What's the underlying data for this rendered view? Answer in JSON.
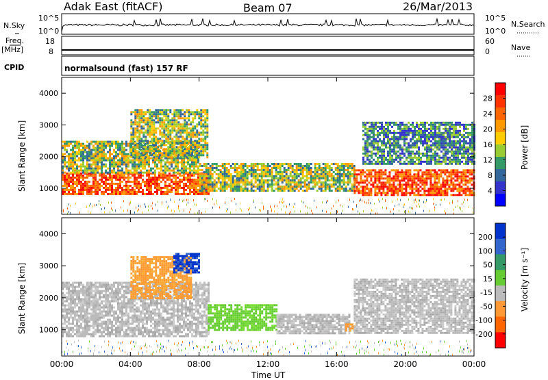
{
  "header": {
    "station": "Adak East (fitACF)",
    "beam": "Beam 07",
    "date": "26/Mar/2013"
  },
  "top_panels": {
    "nsky_label": "N.Sky",
    "nsky_ticks": [
      "10^5",
      "10^0"
    ],
    "nsearch_label": "N.Search",
    "nsearch_ticks": [
      "10^5",
      "10^0"
    ],
    "freq_label": "Freq.",
    "freq_unit": "[MHz]",
    "freq_ticks": [
      "18",
      "8"
    ],
    "nave_label": "Nave",
    "nave_ticks": [
      "60",
      "0"
    ],
    "cpid_label": "CPID",
    "cpid_text": "normalsound (fast) 157 RF"
  },
  "chart_data": [
    {
      "type": "heatmap",
      "panel": "power",
      "ylabel": "Slant Range [km]",
      "yticks": [
        "4000",
        "3000",
        "2000",
        "1000"
      ],
      "ylim": [
        180,
        4500
      ],
      "xlim_hours": [
        0,
        24
      ],
      "colorbar": {
        "label": "Power [dB]",
        "ticks": [
          "28",
          "24",
          "20",
          "16",
          "12",
          "8",
          "4"
        ],
        "colors": [
          "#ff0000",
          "#ff3300",
          "#ff6600",
          "#ff9900",
          "#ffcc00",
          "#99cc33",
          "#339966",
          "#336699",
          "#3333cc",
          "#0000ff"
        ]
      },
      "bands": [
        {
          "t0": 0.0,
          "t1": 8.5,
          "r0": 800,
          "r1": 1500,
          "level": "high"
        },
        {
          "t0": 0.0,
          "t1": 8.0,
          "r0": 1500,
          "r1": 2500,
          "level": "mid"
        },
        {
          "t0": 4.0,
          "t1": 8.5,
          "r0": 2000,
          "r1": 3500,
          "level": "mid"
        },
        {
          "t0": 8.0,
          "t1": 17.0,
          "r0": 900,
          "r1": 1800,
          "level": "mid"
        },
        {
          "t0": 17.0,
          "t1": 24.0,
          "r0": 800,
          "r1": 1600,
          "level": "high"
        },
        {
          "t0": 17.5,
          "t1": 24.0,
          "r0": 1800,
          "r1": 3100,
          "level": "low"
        }
      ]
    },
    {
      "type": "heatmap",
      "panel": "velocity",
      "ylabel": "Slant Range [km]",
      "yticks": [
        "4000",
        "3000",
        "2000",
        "1000"
      ],
      "ylim": [
        180,
        4500
      ],
      "xlim_hours": [
        0,
        24
      ],
      "xlabel": "Time UT",
      "xticks": [
        "00:00",
        "04:00",
        "08:00",
        "12:00",
        "16:00",
        "20:00",
        "00:00"
      ],
      "colorbar": {
        "label": "Velocity [m s⁻¹]",
        "ticks": [
          "200",
          "100",
          "50",
          "15",
          "-15",
          "-50",
          "-100",
          "-200"
        ],
        "colors": [
          "#0033cc",
          "#3366cc",
          "#339966",
          "#66cc33",
          "#bbbbbb",
          "#ff9933",
          "#ff6600",
          "#ff0000"
        ]
      },
      "bands": [
        {
          "t0": 0.0,
          "t1": 8.5,
          "r0": 800,
          "r1": 2500,
          "level": "ground"
        },
        {
          "t0": 4.0,
          "t1": 7.5,
          "r0": 2000,
          "r1": 3300,
          "level": "neg"
        },
        {
          "t0": 6.5,
          "t1": 8.0,
          "r0": 2800,
          "r1": 3400,
          "level": "fastpos"
        },
        {
          "t0": 8.5,
          "t1": 12.5,
          "r0": 1000,
          "r1": 1800,
          "level": "pos"
        },
        {
          "t0": 12.5,
          "t1": 16.8,
          "r0": 900,
          "r1": 1500,
          "level": "ground"
        },
        {
          "t0": 16.5,
          "t1": 17.2,
          "r0": 1000,
          "r1": 1200,
          "level": "neg"
        },
        {
          "t0": 17.0,
          "t1": 24.0,
          "r0": 900,
          "r1": 2600,
          "level": "ground"
        }
      ]
    }
  ]
}
